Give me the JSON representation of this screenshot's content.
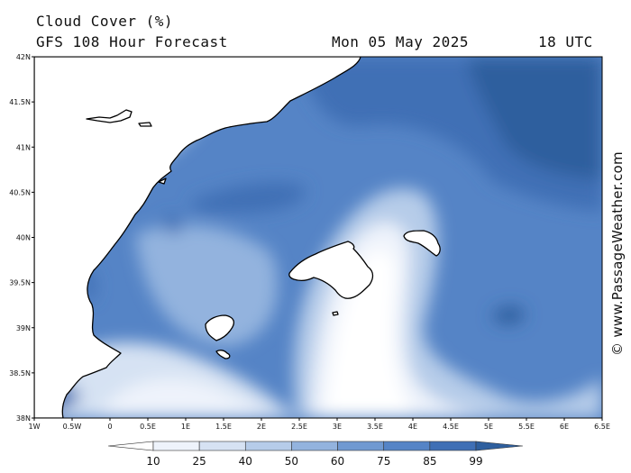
{
  "header": {
    "title": "Cloud Cover (%)",
    "subtitle": "GFS 108 Hour Forecast",
    "date": "Mon 05 May 2025",
    "time": "18 UTC"
  },
  "credit": "© www.PassageWeather.com",
  "map": {
    "lat_labels": [
      "42N",
      "41.5N",
      "41N",
      "40.5N",
      "40N",
      "39.5N",
      "39N",
      "38.5N",
      "38N"
    ],
    "lon_labels": [
      "1W",
      "0.5W",
      "0",
      "0.5E",
      "1E",
      "1.5E",
      "2E",
      "2.5E",
      "3E",
      "3.5E",
      "4E",
      "4.5E",
      "5E",
      "5.5E",
      "6E",
      "6.5E"
    ],
    "lat_range": [
      38,
      42
    ],
    "lon_range": [
      -1,
      6.5
    ],
    "land_features": [
      "iberian-coast",
      "mallorca",
      "menorca",
      "ibiza",
      "formentera",
      "cabrera",
      "columbretes"
    ]
  },
  "colorbar": {
    "levels": [
      "10",
      "25",
      "40",
      "50",
      "60",
      "75",
      "85",
      "99"
    ],
    "colors": [
      "#ffffff",
      "#eef3fb",
      "#d6e2f3",
      "#b6cce9",
      "#93b3de",
      "#7099d1",
      "#5584c6",
      "#3f6fb5",
      "#2e5f9e"
    ]
  }
}
